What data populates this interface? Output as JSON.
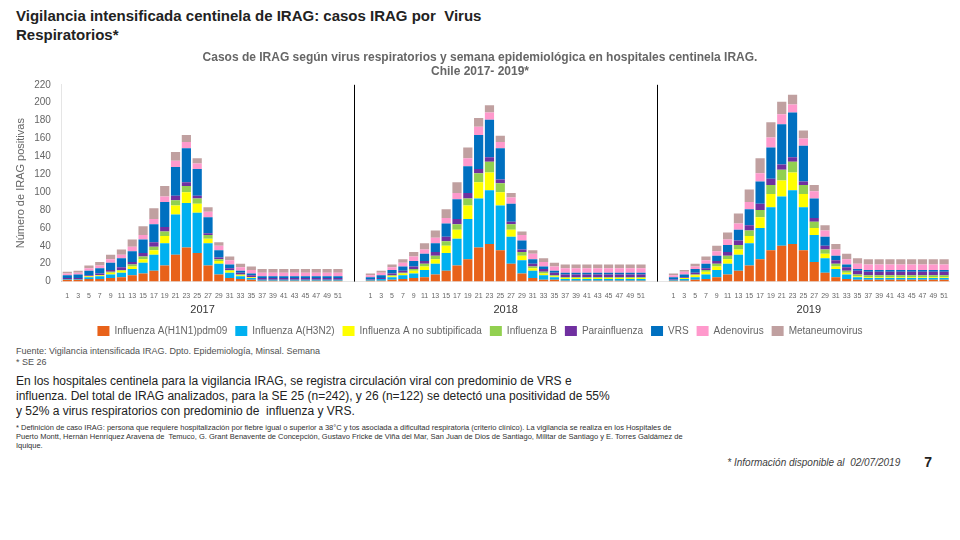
{
  "chart_data": {
    "type": "bar",
    "header": "Vigilancia intensificada centinela de IRAG: casos IRAG por  Virus\nRespiratorios*",
    "title": "Casos de IRAG según virus respiratorios y semana epidemiológica en hospitales centinela IRAG.\nChile 2017- 2019*",
    "ylabel": "Número de IRAG positivas",
    "source": "Fuente: Vigilancia intensificada IRAG. Dpto. Epidemiología, Minsal. Semana\n* SE 26",
    "body": [
      "En los hospitales centinela para la vigilancia IRAG, se registra circulación viral con predominio de VRS e",
      "influenza. Del total de IRAG analizados, para la SE 25 (n=242), y 26 (n=122) se detectó una positividad de 55%",
      "y 52% a virus respiratorios con predominio de  influenza y VRS."
    ],
    "footnote": "* Definición de caso IRAG: persona que requiere hospitalización por fiebre igual o superior a 38°C y tos asociada a dificultad respiratoria (criterio clínico). La vigilancia se realiza en los Hospitales de\nPuerto Montt, Hernán Henríquez Aravena de  Temuco, G. Grant Benavente de Concepción, Gustavo Fricke de Viña del Mar, San Juan de Dios de Santiago, Militar de Santiago y E. Torres Galdámez de\nIquique.",
    "footer_note": "* Información disponible al  02/07/2019",
    "page_number": "7",
    "annotations": [
      {
        "text": "2017"
      },
      {
        "text": "2018"
      },
      {
        "text": "2019"
      }
    ],
    "categories": [
      "1",
      "3",
      "5",
      "7",
      "9",
      "11",
      "13",
      "15",
      "17",
      "19",
      "21",
      "23",
      "25",
      "27",
      "29",
      "31",
      "33",
      "35",
      "37",
      "39",
      "41",
      "43",
      "45",
      "47",
      "49",
      "51",
      null,
      null,
      "1",
      "3",
      "5",
      "7",
      "9",
      "11",
      "13",
      "15",
      "17",
      "19",
      "21",
      "23",
      "25",
      "27",
      "29",
      "31",
      "33",
      "35",
      "37",
      "39",
      "41",
      "43",
      "45",
      "47",
      "49",
      "51",
      null,
      null,
      "1",
      "3",
      "5",
      "7",
      "9",
      "11",
      "13",
      "15",
      "17",
      "19",
      "21",
      "23",
      "25",
      "27",
      "29",
      "31",
      "33",
      "35",
      "37",
      "39",
      "41",
      "43",
      "45",
      "47",
      "49",
      "51"
    ],
    "series": [
      {
        "name": "Influenza A(H1N1)pdm09",
        "color": "#E8621A",
        "values": [
          2,
          2,
          3,
          3,
          4,
          5,
          7,
          9,
          12,
          18,
          30,
          38,
          32,
          18,
          8,
          4,
          3,
          2,
          1,
          1,
          1,
          1,
          1,
          1,
          1,
          1,
          null,
          null,
          1,
          1,
          2,
          3,
          4,
          5,
          8,
          12,
          18,
          25,
          38,
          42,
          35,
          20,
          9,
          4,
          2,
          2,
          1,
          1,
          1,
          1,
          1,
          1,
          1,
          1,
          null,
          null,
          1,
          1,
          2,
          3,
          5,
          8,
          12,
          18,
          25,
          35,
          40,
          42,
          35,
          22,
          10,
          5,
          3,
          2,
          2,
          2,
          2,
          2,
          2,
          2,
          2,
          2
        ]
      },
      {
        "name": "Influenza A(H3N2)",
        "color": "#00B0F0",
        "values": [
          1,
          1,
          2,
          3,
          4,
          5,
          7,
          12,
          18,
          25,
          45,
          50,
          45,
          25,
          12,
          6,
          3,
          2,
          1,
          1,
          1,
          1,
          1,
          1,
          1,
          1,
          null,
          null,
          1,
          2,
          3,
          4,
          5,
          8,
          12,
          20,
          30,
          45,
          55,
          60,
          50,
          30,
          15,
          8,
          5,
          3,
          2,
          2,
          2,
          2,
          2,
          2,
          2,
          2,
          null,
          null,
          1,
          2,
          3,
          5,
          8,
          12,
          18,
          25,
          35,
          48,
          55,
          60,
          48,
          30,
          16,
          9,
          5,
          3,
          2,
          2,
          2,
          2,
          2,
          2,
          2,
          2
        ]
      },
      {
        "name": "Influenza A no subtipificada",
        "color": "#FFFF00",
        "values": [
          0,
          0,
          1,
          1,
          2,
          2,
          3,
          4,
          5,
          8,
          10,
          12,
          10,
          5,
          3,
          2,
          1,
          1,
          0,
          0,
          0,
          0,
          0,
          0,
          0,
          0,
          null,
          null,
          0,
          0,
          1,
          2,
          3,
          4,
          5,
          8,
          10,
          15,
          18,
          20,
          15,
          8,
          5,
          3,
          2,
          1,
          1,
          1,
          1,
          1,
          1,
          1,
          1,
          1,
          null,
          null,
          0,
          1,
          2,
          3,
          4,
          5,
          6,
          8,
          12,
          15,
          18,
          20,
          15,
          8,
          5,
          3,
          2,
          1,
          1,
          1,
          1,
          1,
          1,
          1,
          1,
          1
        ]
      },
      {
        "name": "Influenza B",
        "color": "#92D050",
        "values": [
          0,
          0,
          0,
          0,
          1,
          1,
          2,
          3,
          4,
          5,
          6,
          7,
          6,
          4,
          2,
          1,
          1,
          0,
          0,
          0,
          0,
          0,
          0,
          0,
          0,
          0,
          null,
          null,
          0,
          0,
          1,
          1,
          2,
          3,
          4,
          5,
          6,
          8,
          10,
          12,
          10,
          6,
          4,
          2,
          2,
          1,
          1,
          1,
          1,
          1,
          1,
          1,
          1,
          1,
          null,
          null,
          0,
          0,
          1,
          2,
          3,
          4,
          5,
          6,
          8,
          10,
          12,
          12,
          10,
          7,
          5,
          3,
          2,
          2,
          2,
          2,
          2,
          2,
          2,
          2,
          2,
          2
        ]
      },
      {
        "name": "Parainfluenza",
        "color": "#7030A0",
        "values": [
          1,
          1,
          1,
          2,
          2,
          3,
          3,
          4,
          5,
          5,
          5,
          4,
          3,
          2,
          2,
          2,
          2,
          2,
          2,
          2,
          2,
          2,
          2,
          2,
          2,
          2,
          null,
          null,
          1,
          1,
          2,
          2,
          3,
          3,
          4,
          5,
          6,
          6,
          5,
          5,
          4,
          3,
          3,
          3,
          3,
          3,
          3,
          3,
          3,
          3,
          3,
          3,
          3,
          3,
          null,
          null,
          1,
          1,
          2,
          2,
          3,
          4,
          5,
          6,
          7,
          7,
          6,
          5,
          4,
          4,
          4,
          4,
          4,
          4,
          4,
          4,
          4,
          4,
          4,
          4,
          4,
          4
        ]
      },
      {
        "name": "VRS",
        "color": "#0070C0",
        "values": [
          3,
          4,
          5,
          6,
          8,
          10,
          12,
          15,
          20,
          28,
          32,
          38,
          30,
          18,
          8,
          4,
          2,
          2,
          2,
          2,
          2,
          2,
          2,
          2,
          2,
          2,
          null,
          null,
          2,
          3,
          4,
          5,
          6,
          8,
          10,
          15,
          22,
          30,
          38,
          42,
          35,
          20,
          10,
          5,
          3,
          2,
          2,
          2,
          2,
          2,
          2,
          2,
          2,
          2,
          null,
          null,
          2,
          3,
          4,
          5,
          6,
          8,
          12,
          18,
          25,
          35,
          45,
          50,
          40,
          22,
          10,
          5,
          3,
          2,
          2,
          2,
          2,
          2,
          2,
          2,
          2,
          2
        ]
      },
      {
        "name": "Adenovirus",
        "color": "#FF99CC",
        "values": [
          2,
          2,
          3,
          3,
          4,
          4,
          5,
          5,
          6,
          6,
          7,
          7,
          6,
          6,
          5,
          5,
          4,
          4,
          4,
          4,
          4,
          4,
          4,
          4,
          4,
          4,
          null,
          null,
          2,
          3,
          3,
          4,
          5,
          5,
          6,
          6,
          7,
          9,
          9,
          8,
          7,
          7,
          6,
          6,
          5,
          5,
          5,
          5,
          5,
          5,
          5,
          5,
          5,
          5,
          null,
          null,
          2,
          3,
          3,
          4,
          5,
          6,
          7,
          8,
          9,
          11,
          11,
          9,
          8,
          8,
          7,
          7,
          6,
          6,
          6,
          6,
          6,
          6,
          6,
          6,
          6,
          6
        ]
      },
      {
        "name": "Metaneumovirus",
        "color": "#C0A0A0",
        "values": [
          2,
          2,
          3,
          4,
          5,
          6,
          8,
          10,
          12,
          12,
          10,
          8,
          6,
          5,
          4,
          4,
          4,
          4,
          4,
          4,
          4,
          4,
          4,
          4,
          4,
          4,
          null,
          null,
          2,
          2,
          3,
          4,
          5,
          7,
          8,
          10,
          12,
          12,
          10,
          8,
          7,
          5,
          4,
          4,
          4,
          4,
          4,
          4,
          4,
          4,
          4,
          4,
          4,
          4,
          null,
          null,
          2,
          2,
          3,
          4,
          6,
          8,
          11,
          14,
          17,
          17,
          14,
          11,
          9,
          7,
          6,
          6,
          6,
          6,
          6,
          6,
          6,
          6,
          6,
          6,
          6,
          6
        ]
      }
    ],
    "stacked": true,
    "ylim": [
      0,
      220
    ],
    "yticks": [
      0,
      20,
      40,
      60,
      80,
      100,
      120,
      140,
      160,
      180,
      200,
      220
    ],
    "grid": false,
    "legend": "bottom"
  }
}
